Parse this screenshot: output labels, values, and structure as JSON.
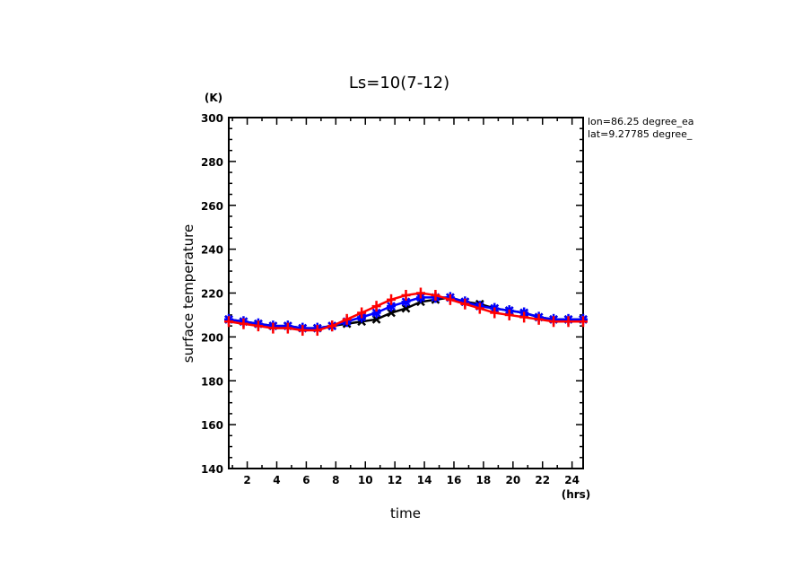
{
  "chart_data": {
    "type": "line",
    "title": "Ls=10(7-12)",
    "xlabel": "time",
    "xunit": "(hrs)",
    "ylabel": "surface temperature",
    "yunit": "(K)",
    "xlim": [
      0.75,
      24.75
    ],
    "ylim": [
      140,
      300
    ],
    "xticks": [
      2,
      4,
      6,
      8,
      10,
      12,
      14,
      16,
      18,
      20,
      22,
      24
    ],
    "yticks": [
      140,
      160,
      180,
      200,
      220,
      240,
      260,
      280,
      300
    ],
    "annotations": [
      "lon=86.25 degree_ea",
      "lat=9.27785 degree_"
    ],
    "x": [
      0.75,
      1.75,
      2.75,
      3.75,
      4.75,
      5.75,
      6.75,
      7.75,
      8.75,
      9.75,
      10.75,
      11.75,
      12.75,
      13.75,
      14.75,
      15.75,
      16.75,
      17.75,
      18.75,
      19.75,
      20.75,
      21.75,
      22.75,
      23.75,
      24.75
    ],
    "series": [
      {
        "name": "black",
        "color": "#000000",
        "marker": "x",
        "values": [
          208,
          207,
          206,
          205,
          205,
          204,
          204,
          205,
          206,
          207,
          208,
          211,
          213,
          216,
          217,
          218,
          216,
          215,
          213,
          212,
          211,
          209,
          208,
          208,
          208
        ]
      },
      {
        "name": "blue",
        "color": "#0000ff",
        "marker": "*",
        "values": [
          208,
          207,
          206,
          205,
          205,
          204,
          204,
          205,
          207,
          209,
          211,
          214,
          216,
          218,
          218,
          218,
          216,
          214,
          213,
          212,
          211,
          209,
          208,
          208,
          208
        ]
      },
      {
        "name": "red",
        "color": "#ff0000",
        "marker": "+",
        "values": [
          207,
          206,
          205,
          204,
          204,
          203,
          203,
          205,
          208,
          211,
          214,
          217,
          219,
          220,
          219,
          217,
          215,
          213,
          211,
          210,
          209,
          208,
          207,
          207,
          207
        ]
      }
    ]
  }
}
